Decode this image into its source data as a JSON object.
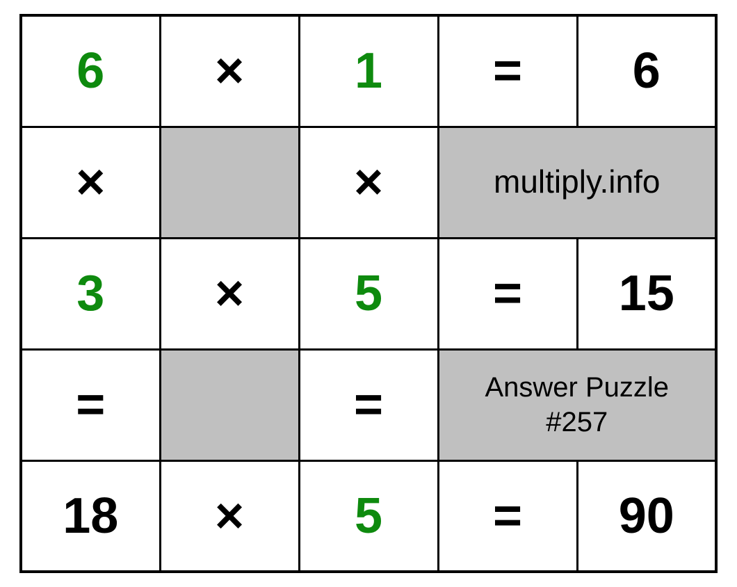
{
  "puzzle": {
    "type": "multiplication-grid",
    "grid_cols": 5,
    "grid_rows": 5,
    "cell_border_color": "#000000",
    "background_color": "#ffffff",
    "shaded_color": "#c0c0c0",
    "number_green": "#0e8a0e",
    "number_black": "#000000",
    "number_fontsize": 72,
    "label_fontsize": 46,
    "label_small_fontsize": 40,
    "site_label": "multiply.info",
    "puzzle_label": "Answer Puzzle\n#257",
    "cells": {
      "r0c0": "6",
      "r0c1": "×",
      "r0c2": "1",
      "r0c3": "=",
      "r0c4": "6",
      "r1c0": "×",
      "r1c2": "×",
      "r2c0": "3",
      "r2c1": "×",
      "r2c2": "5",
      "r2c3": "=",
      "r2c4": "15",
      "r3c0": "=",
      "r3c2": "=",
      "r4c0": "18",
      "r4c1": "×",
      "r4c2": "5",
      "r4c3": "=",
      "r4c4": "90"
    }
  }
}
